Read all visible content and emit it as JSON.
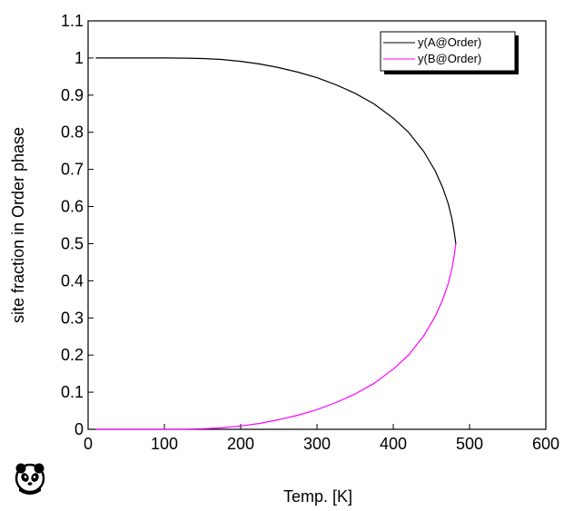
{
  "chart_data": {
    "type": "line",
    "xlabel": "Temp.  [K]",
    "ylabel": "site fraction in Order phase",
    "xlim": [
      0,
      600
    ],
    "ylim": [
      0,
      1.1
    ],
    "xticks": [
      "0",
      "100",
      "200",
      "300",
      "400",
      "500",
      "600"
    ],
    "yticks": [
      "0",
      "0.1",
      "0.2",
      "0.3",
      "0.4",
      "0.5",
      "0.6",
      "0.7",
      "0.8",
      "0.9",
      "1",
      "1.1"
    ],
    "grid": false,
    "legend_position": "top-right",
    "series": [
      {
        "name": "y(A@Order)",
        "color": "#000000",
        "x": [
          10,
          50,
          100,
          130,
          150,
          175,
          200,
          225,
          250,
          275,
          300,
          325,
          350,
          375,
          400,
          420,
          440,
          455,
          465,
          472,
          477,
          480,
          482
        ],
        "y": [
          1.0,
          1.0,
          1.0,
          0.9995,
          0.9985,
          0.996,
          0.991,
          0.984,
          0.974,
          0.962,
          0.947,
          0.928,
          0.905,
          0.876,
          0.838,
          0.8,
          0.748,
          0.696,
          0.65,
          0.608,
          0.566,
          0.53,
          0.5
        ]
      },
      {
        "name": "y(B@Order)",
        "color": "#ff00ff",
        "x": [
          10,
          50,
          100,
          130,
          150,
          175,
          200,
          225,
          250,
          275,
          300,
          325,
          350,
          375,
          400,
          420,
          440,
          455,
          465,
          472,
          477,
          480,
          482
        ],
        "y": [
          0.0,
          0.0,
          0.0,
          0.0005,
          0.0015,
          0.004,
          0.009,
          0.016,
          0.026,
          0.038,
          0.053,
          0.072,
          0.095,
          0.124,
          0.162,
          0.2,
          0.252,
          0.304,
          0.35,
          0.392,
          0.434,
          0.47,
          0.5
        ]
      }
    ]
  },
  "icons": {
    "logo": "panda-icon"
  }
}
